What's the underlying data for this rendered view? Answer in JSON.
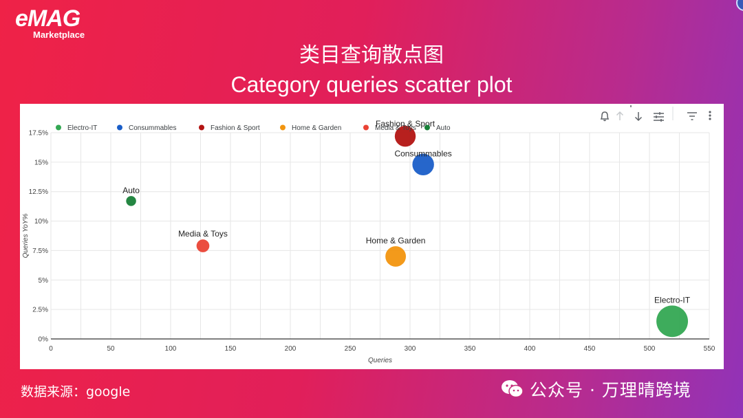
{
  "brand": {
    "name": "eMAG",
    "tagline": "Marketplace"
  },
  "title_cn": "类目查询散点图",
  "title_en": "Category queries scatter plot",
  "source_text": "数据来源：google",
  "watermark_text": "公众号 · 万理晴跨境",
  "toolbar_icons": [
    "bell-icon",
    "sort-asc-icon",
    "sort-desc-icon",
    "adjust-icon",
    "filter-icon",
    "more-icon"
  ],
  "chart_data": {
    "type": "scatter",
    "xlabel": "Queries",
    "ylabel": "Queries YoY%",
    "xlim": [
      0,
      550
    ],
    "ylim": [
      0,
      17.5
    ],
    "xticks": [
      0,
      50,
      100,
      150,
      200,
      250,
      300,
      350,
      400,
      450,
      500,
      550
    ],
    "yticks": [
      0,
      2.5,
      5,
      7.5,
      10,
      12.5,
      15,
      17.5
    ],
    "xtick_labels": [
      "0",
      "50",
      "100",
      "150",
      "200",
      "250",
      "300",
      "350",
      "400",
      "450",
      "500",
      "550"
    ],
    "ytick_labels": [
      "0%",
      "2.5%",
      "5%",
      "7.5%",
      "10%",
      "12.5%",
      "15%",
      "17.5%"
    ],
    "legend_position": "top-left",
    "grid": true,
    "series": [
      {
        "name": "Electro-IT",
        "color": "#34a853",
        "x": 519,
        "y": 1.5,
        "size": 519,
        "label": "Electro-IT"
      },
      {
        "name": "Consummables",
        "color": "#1a5ec8",
        "x": 311,
        "y": 14.8,
        "size": 311,
        "label": "Consummables"
      },
      {
        "name": "Fashion & Sport",
        "color": "#b31412",
        "x": 296,
        "y": 17.2,
        "size": 296,
        "label": "Fashion & Sport"
      },
      {
        "name": "Home & Garden",
        "color": "#f2950f",
        "x": 288,
        "y": 7.0,
        "size": 288,
        "label": "Home & Garden"
      },
      {
        "name": "Media & Toys",
        "color": "#ea4335",
        "x": 127,
        "y": 7.9,
        "size": 127,
        "label": "Media & Toys"
      },
      {
        "name": "Auto",
        "color": "#188038",
        "x": 67,
        "y": 11.7,
        "size": 67,
        "label": "Auto"
      }
    ]
  }
}
